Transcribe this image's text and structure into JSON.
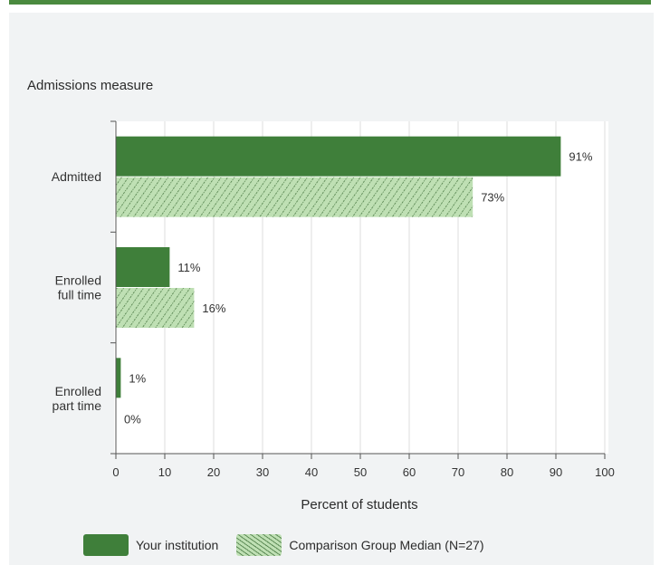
{
  "chart_data": {
    "type": "bar",
    "orientation": "horizontal",
    "ylabel": "Admissions measure",
    "xlabel": "Percent of students",
    "xlim": [
      0,
      100
    ],
    "xticks": [
      0,
      10,
      20,
      30,
      40,
      50,
      60,
      70,
      80,
      90,
      100
    ],
    "categories": [
      [
        "Admitted"
      ],
      [
        "Enrolled",
        "full time"
      ],
      [
        "Enrolled",
        "part time"
      ]
    ],
    "series": [
      {
        "name": "Your institution",
        "values": [
          91,
          11,
          1
        ],
        "labels": [
          "91%",
          "11%",
          "1%"
        ],
        "color": "#3f7f3a",
        "pattern": "solid"
      },
      {
        "name": "Comparison Group Median (N=27)",
        "values": [
          73,
          16,
          0
        ],
        "labels": [
          "73%",
          "16%",
          "0%"
        ],
        "color": "#bfe0b4",
        "pattern": "hatched"
      }
    ],
    "grid": "vertical",
    "legend": "bottom"
  }
}
